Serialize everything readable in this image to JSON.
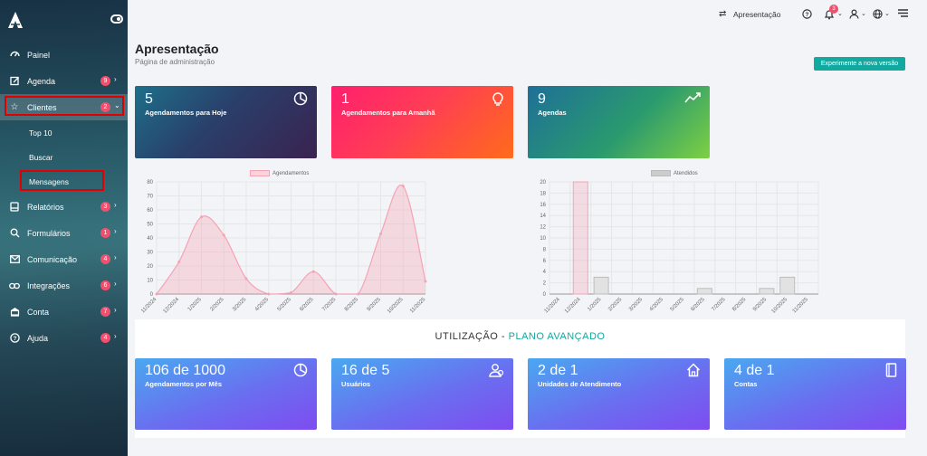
{
  "sidebar": {
    "items": [
      {
        "label": "Painel",
        "icon": "dashboard-icon",
        "badge": null
      },
      {
        "label": "Agenda",
        "icon": "calendar-edit-icon",
        "badge": "9"
      },
      {
        "label": "Clientes",
        "icon": "star-icon",
        "badge": "2"
      },
      {
        "label": "Relatórios",
        "icon": "report-icon",
        "badge": "3"
      },
      {
        "label": "Formulários",
        "icon": "search-icon",
        "badge": "1"
      },
      {
        "label": "Comunicação",
        "icon": "mail-icon",
        "badge": "4"
      },
      {
        "label": "Integrações",
        "icon": "link-icon",
        "badge": "6"
      },
      {
        "label": "Conta",
        "icon": "bank-icon",
        "badge": "7"
      },
      {
        "label": "Ajuda",
        "icon": "help-icon",
        "badge": "4"
      }
    ],
    "sub_items": [
      "Top 10",
      "Buscar",
      "Mensagens"
    ]
  },
  "topbar": {
    "presentation_label": "Apresentação",
    "notification_count": "3"
  },
  "page": {
    "title": "Apresentação",
    "subtitle": "Página de administração",
    "new_version_button": "Experimente a nova versão"
  },
  "stats": [
    {
      "value": "5",
      "label": "Agendamentos para Hoje",
      "icon": "pie-chart-icon"
    },
    {
      "value": "1",
      "label": "Agendamentos para Amanhã",
      "icon": "lightbulb-icon"
    },
    {
      "value": "9",
      "label": "Agendas",
      "icon": "trend-icon"
    }
  ],
  "chart_data": [
    {
      "type": "line",
      "legend": "Agendamentos",
      "categories": [
        "11/2024",
        "12/2024",
        "1/2025",
        "2/2025",
        "3/2025",
        "4/2025",
        "5/2025",
        "6/2025",
        "7/2025",
        "8/2025",
        "9/2025",
        "10/2025",
        "11/2025"
      ],
      "values": [
        0,
        23,
        55,
        42,
        11,
        0,
        1,
        16,
        0,
        0,
        43,
        77,
        9
      ],
      "ylim": [
        0,
        80
      ],
      "yticks": [
        "0",
        "10",
        "20",
        "30",
        "40",
        "50",
        "60",
        "70",
        "80"
      ],
      "color": "#f4a3b5"
    },
    {
      "type": "bar",
      "legend": "Atendidos",
      "categories": [
        "11/2024",
        "12/2024",
        "1/2025",
        "2/2025",
        "3/2025",
        "4/2025",
        "5/2025",
        "6/2025",
        "7/2025",
        "8/2025",
        "9/2025",
        "10/2025",
        "11/2025"
      ],
      "values": [
        0,
        20,
        3,
        0,
        0,
        0,
        0,
        1,
        0,
        0,
        1,
        3,
        0
      ],
      "ylim": [
        0,
        20
      ],
      "yticks": [
        "0",
        "2",
        "4",
        "6",
        "8",
        "10",
        "12",
        "14",
        "16",
        "18",
        "20"
      ],
      "color": "#cccccc"
    }
  ],
  "usage": {
    "title_prefix": "UTILIZAÇÃO - ",
    "plan": "PLANO AVANÇADO",
    "cards": [
      {
        "value": "106 de 1000",
        "label": "Agendamentos por Mês",
        "icon": "pie-chart-icon"
      },
      {
        "value": "16 de 5",
        "label": "Usuários",
        "icon": "users-icon"
      },
      {
        "value": "2 de 1",
        "label": "Unidades de Atendimento",
        "icon": "home-icon"
      },
      {
        "value": "4 de 1",
        "label": "Contas",
        "icon": "notebook-icon"
      }
    ]
  }
}
